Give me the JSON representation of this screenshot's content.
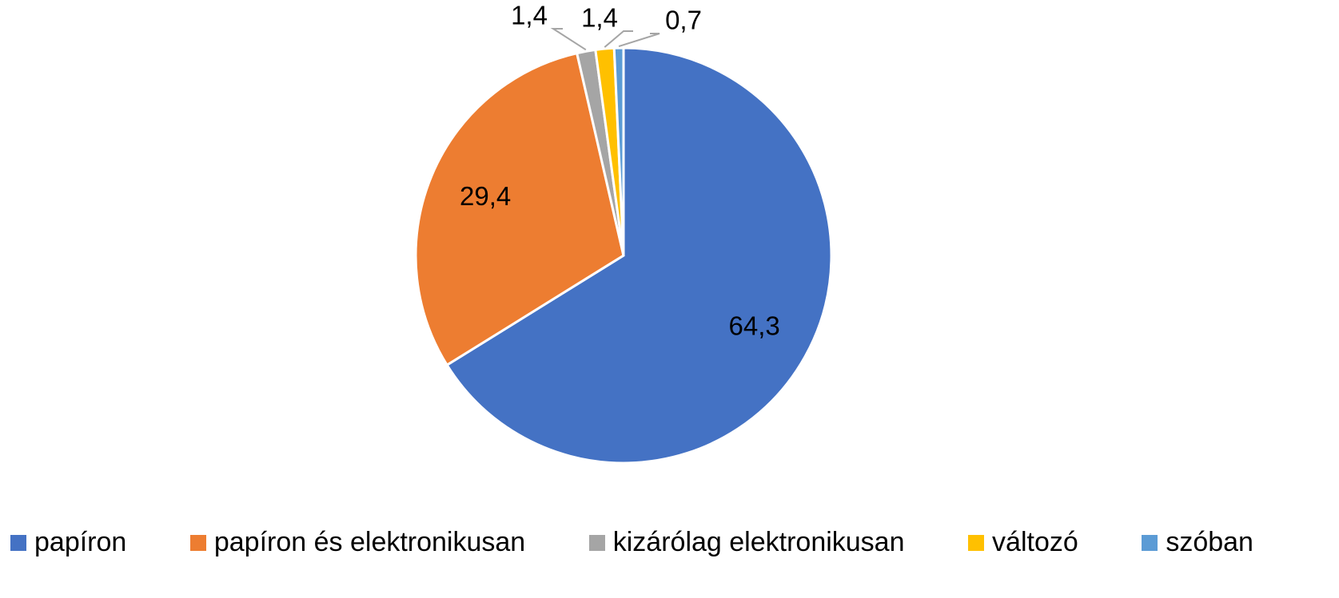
{
  "chart_data": {
    "type": "pie",
    "categories": [
      "papíron",
      "papíron és elektronikusan",
      "kizárólag elektronikusan",
      "változó",
      "szóban"
    ],
    "values": [
      64.3,
      29.4,
      1.4,
      1.4,
      0.7
    ],
    "value_labels": [
      "64,3",
      "29,4",
      "1,4",
      "1,4",
      "0,7"
    ],
    "colors": [
      "#4472c4",
      "#ed7d31",
      "#a5a5a5",
      "#ffc000",
      "#5b9bd5"
    ],
    "legend": "bottom"
  }
}
